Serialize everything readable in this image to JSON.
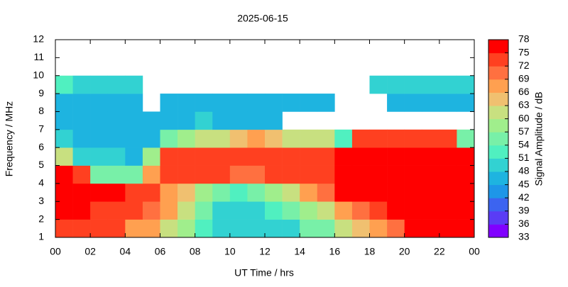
{
  "chart_data": {
    "type": "heatmap",
    "title": "2025-06-15",
    "x_label": "UT Time / hrs",
    "y_label": "Frequency / MHz",
    "xlim": [
      0,
      24
    ],
    "xticks": [
      {
        "value": 0,
        "label": "00"
      },
      {
        "value": 2,
        "label": "02"
      },
      {
        "value": 4,
        "label": "04"
      },
      {
        "value": 6,
        "label": "06"
      },
      {
        "value": 8,
        "label": "08"
      },
      10,
      12,
      14,
      16,
      18,
      20,
      22,
      {
        "value": 24,
        "label": "00"
      }
    ],
    "ylim": [
      1,
      12
    ],
    "yticks": [
      1,
      2,
      3,
      4,
      5,
      6,
      7,
      8,
      9,
      10,
      11,
      12
    ],
    "xbins": [
      0,
      1,
      2,
      3,
      4,
      5,
      6,
      7,
      8,
      9,
      10,
      11,
      12,
      13,
      14,
      15,
      16,
      17,
      18,
      19,
      20,
      21,
      22,
      23,
      24
    ],
    "ybins": [
      1,
      2,
      3,
      4,
      5,
      6,
      7,
      8,
      9,
      10
    ],
    "z": [
      [
        74,
        74,
        72,
        72,
        68,
        66,
        62,
        58,
        52,
        50,
        48,
        48,
        50,
        50,
        54,
        56,
        60,
        64,
        66,
        70,
        76,
        76,
        76,
        76
      ],
      [
        75,
        75,
        74,
        74,
        72,
        70,
        66,
        60,
        54,
        50,
        50,
        50,
        52,
        54,
        58,
        62,
        66,
        70,
        74,
        76,
        77,
        77,
        77,
        77
      ],
      [
        76,
        76,
        76,
        75,
        74,
        72,
        68,
        64,
        58,
        54,
        52,
        54,
        58,
        62,
        66,
        70,
        76,
        77,
        77,
        77,
        77,
        77,
        77,
        77
      ],
      [
        76,
        74,
        56,
        54,
        55,
        66,
        72,
        72,
        72,
        72,
        70,
        70,
        72,
        72,
        72,
        72,
        77,
        77,
        77,
        77,
        77,
        77,
        77,
        77
      ],
      [
        62,
        50,
        48,
        48,
        47,
        58,
        72,
        73,
        73,
        72,
        72,
        72,
        73,
        72,
        72,
        72,
        76,
        77,
        77,
        77,
        77,
        77,
        77,
        77
      ],
      [
        48,
        47,
        46,
        46,
        47,
        46,
        54,
        58,
        62,
        62,
        64,
        66,
        64,
        62,
        62,
        60,
        52,
        72,
        74,
        74,
        74,
        74,
        72,
        56
      ],
      [
        47,
        47,
        46,
        46,
        47,
        46,
        46,
        46,
        48,
        46,
        46,
        46,
        46,
        null,
        null,
        null,
        null,
        null,
        null,
        null,
        null,
        null,
        null,
        null
      ],
      [
        46,
        46,
        46,
        46,
        46,
        null,
        46,
        46,
        46,
        46,
        46,
        46,
        46,
        46,
        46,
        46,
        null,
        null,
        null,
        46,
        46,
        46,
        46,
        46
      ],
      [
        52,
        50,
        48,
        50,
        48,
        null,
        null,
        null,
        null,
        null,
        null,
        null,
        null,
        null,
        null,
        null,
        null,
        null,
        50,
        50,
        50,
        50,
        50,
        50
      ]
    ],
    "colorbar": {
      "label": "Signal Amplitude / dB",
      "lim": [
        33,
        78
      ],
      "ticks": [
        33,
        36,
        39,
        42,
        45,
        48,
        51,
        54,
        57,
        60,
        63,
        66,
        69,
        72,
        75,
        78
      ],
      "colors": [
        "#8000ff",
        "#5a3cf5",
        "#3c64f0",
        "#1e96e8",
        "#1eb4e0",
        "#32d2d2",
        "#50f0c0",
        "#78f0a8",
        "#a0ee8c",
        "#c8e080",
        "#f0c070",
        "#ffa050",
        "#ff7040",
        "#ff4020",
        "#ff0000"
      ]
    }
  }
}
